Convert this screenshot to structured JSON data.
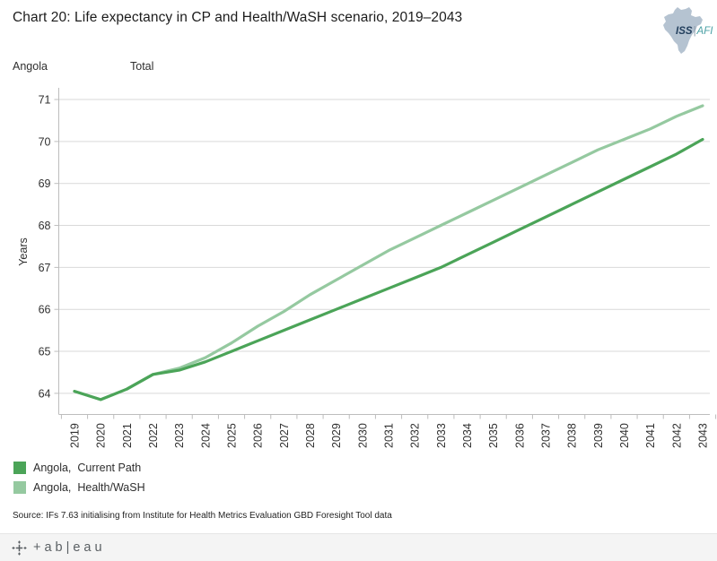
{
  "header": {
    "title": "Chart 20: Life expectancy in CP and Health/WaSH scenario, 2019–2043",
    "logo": {
      "primary": "ISS",
      "divider": "|",
      "secondary": "AFI"
    }
  },
  "panel": {
    "region_label": "Angola",
    "measure_label": "Total"
  },
  "chart_data": {
    "type": "line",
    "title": "Chart 20: Life expectancy in CP and Health/WaSH scenario, 2019–2043",
    "xlabel": "",
    "ylabel": "Years",
    "x": [
      "2019",
      "2020",
      "2021",
      "2022",
      "2023",
      "2024",
      "2025",
      "2026",
      "2027",
      "2028",
      "2029",
      "2030",
      "2031",
      "2032",
      "2033",
      "2034",
      "2035",
      "2036",
      "2037",
      "2038",
      "2039",
      "2040",
      "2041",
      "2042",
      "2043"
    ],
    "yticks": [
      64,
      65,
      66,
      67,
      68,
      69,
      70,
      71
    ],
    "ylim": [
      63.5,
      71.3
    ],
    "grid": "horizontal",
    "legend_position": "bottom-left",
    "series": [
      {
        "name": "Angola,  Current Path",
        "color": "#4ba458",
        "values": [
          64.05,
          63.85,
          64.1,
          64.45,
          64.55,
          64.75,
          65.0,
          65.25,
          65.5,
          65.75,
          66.0,
          66.25,
          66.5,
          66.75,
          67.0,
          67.3,
          67.6,
          67.9,
          68.2,
          68.5,
          68.8,
          69.1,
          69.4,
          69.7,
          70.05
        ]
      },
      {
        "name": "Angola,  Health/WaSH",
        "color": "#95c9a0",
        "values": [
          64.05,
          63.85,
          64.1,
          64.45,
          64.6,
          64.85,
          65.2,
          65.6,
          65.95,
          66.35,
          66.7,
          67.05,
          67.4,
          67.7,
          68.0,
          68.3,
          68.6,
          68.9,
          69.2,
          69.5,
          69.8,
          70.05,
          70.3,
          70.6,
          70.85
        ]
      }
    ],
    "axis_colors": {
      "gridline": "#d9d9d9",
      "axis_line": "#bdbdbd",
      "tick_label": "#303030"
    }
  },
  "source": "Source: IFs 7.63 initialising from Institute for Health Metrics Evaluation GBD Foresight Tool data",
  "toolbar": {
    "brand": "tableau",
    "brand_display": "+ab|eau"
  }
}
